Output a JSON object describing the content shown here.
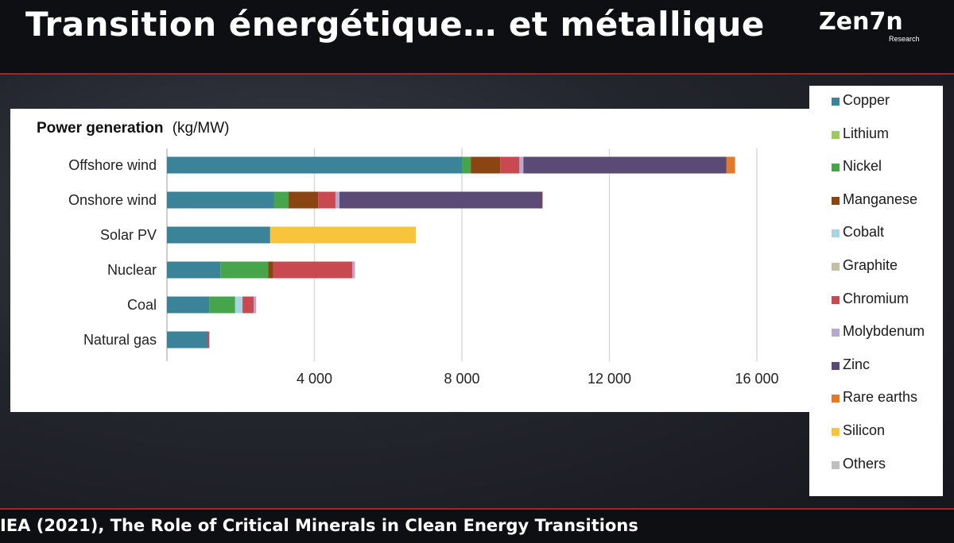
{
  "slide": {
    "title": "Transition énergétique… et métallique",
    "logo_main": "Zen7n",
    "logo_sub": "Research",
    "footer": "IEA (2021), The Role of Critical Minerals in Clean Energy Transitions"
  },
  "colors": {
    "Copper": "#3b8398",
    "Lithium": "#9ccb58",
    "Nickel": "#46a54b",
    "Manganese": "#8b4513",
    "Cobalt": "#a7d6e3",
    "Graphite": "#c4c0a8",
    "Chromium": "#c84a50",
    "Molybdenum": "#b8a7cf",
    "Zinc": "#5a4a75",
    "Rare earths": "#e07a2c",
    "Silicon": "#f7c43c",
    "Others": "#bfbfbf"
  },
  "chart_data": {
    "type": "bar",
    "orientation": "horizontal",
    "stacked": true,
    "title": "Power generation",
    "title_unit": "(kg/MW)",
    "categories": [
      "Offshore wind",
      "Onshore wind",
      "Solar PV",
      "Nuclear",
      "Coal",
      "Natural gas"
    ],
    "xlim": [
      0,
      16500
    ],
    "xticks": [
      4000,
      8000,
      12000,
      16000
    ],
    "xtick_labels": [
      "4 000",
      "8 000",
      "12 000",
      "16 000"
    ],
    "grid": "vertical",
    "legend_position": "right",
    "series": [
      {
        "name": "Copper",
        "values": [
          8000,
          2900,
          2800,
          1450,
          1150,
          1100
        ]
      },
      {
        "name": "Lithium",
        "values": [
          0,
          0,
          0,
          0,
          0,
          0
        ]
      },
      {
        "name": "Nickel",
        "values": [
          240,
          400,
          0,
          1300,
          700,
          0
        ]
      },
      {
        "name": "Manganese",
        "values": [
          800,
          800,
          0,
          130,
          0,
          0
        ]
      },
      {
        "name": "Cobalt",
        "values": [
          0,
          0,
          0,
          0,
          200,
          0
        ]
      },
      {
        "name": "Graphite",
        "values": [
          0,
          0,
          0,
          0,
          0,
          0
        ]
      },
      {
        "name": "Chromium",
        "values": [
          520,
          470,
          0,
          2150,
          300,
          50
        ]
      },
      {
        "name": "Molybdenum",
        "values": [
          110,
          110,
          0,
          70,
          70,
          0
        ]
      },
      {
        "name": "Zinc",
        "values": [
          5500,
          5500,
          0,
          0,
          0,
          0
        ]
      },
      {
        "name": "Rare earths",
        "values": [
          240,
          14,
          0,
          0,
          0,
          0
        ]
      },
      {
        "name": "Silicon",
        "values": [
          0,
          0,
          3950,
          0,
          0,
          0
        ]
      },
      {
        "name": "Others",
        "values": [
          0,
          0,
          0,
          0,
          0,
          0
        ]
      }
    ]
  }
}
